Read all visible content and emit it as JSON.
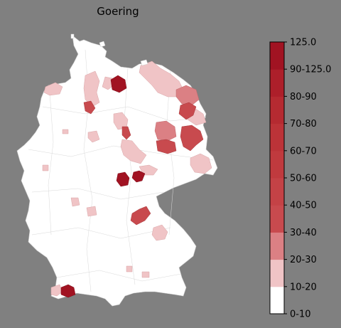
{
  "title": "Goering",
  "colorbar": {
    "labels": [
      "0-10",
      "10-20",
      "20-30",
      "30-40",
      "40-50",
      "50-60",
      "60-70",
      "70-80",
      "80-90",
      "90-125.0",
      "125.0"
    ],
    "colors": [
      "#ffffff",
      "#f0c4c6",
      "#db8084",
      "#c84a4e",
      "#c44246",
      "#c03a3e",
      "#bc3338",
      "#b52a31",
      "#ad1f2a",
      "#a11322",
      "#980a1a"
    ]
  },
  "map": {
    "subject": "Germany districts choropleth",
    "background": "#808080",
    "base_fill": "#ffffff",
    "border_color": "#c8c8c8"
  }
}
